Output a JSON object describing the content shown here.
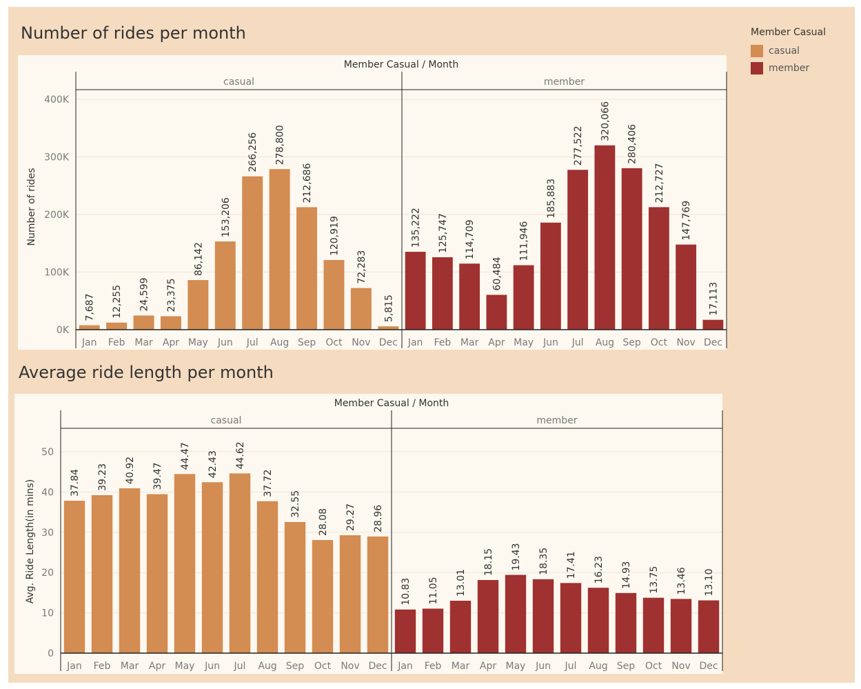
{
  "colors": {
    "casual": "#d38c52",
    "member": "#9f3131",
    "dashboard_bg": "#f5dcc0",
    "panel_bg": "#fdf8f0"
  },
  "legend": {
    "title": "Member Casual",
    "items": [
      {
        "label": "casual",
        "color": "#d38c52"
      },
      {
        "label": "member",
        "color": "#9f3131"
      }
    ]
  },
  "chart_data": [
    {
      "type": "bar",
      "title": "Number of rides per month",
      "header": "Member Casual  /  Month",
      "panels": [
        "casual",
        "member"
      ],
      "categories": [
        "Jan",
        "Feb",
        "Mar",
        "Apr",
        "May",
        "Jun",
        "Jul",
        "Aug",
        "Sep",
        "Oct",
        "Nov",
        "Dec"
      ],
      "series": [
        {
          "name": "casual",
          "values": [
            7687,
            12255,
            24599,
            23375,
            86142,
            153206,
            266256,
            278800,
            212686,
            120919,
            72283,
            5815
          ],
          "labels": [
            "7,687",
            "12,255",
            "24,599",
            "23,375",
            "86,142",
            "153,206",
            "266,256",
            "278,800",
            "212,686",
            "120,919",
            "72,283",
            "5,815"
          ]
        },
        {
          "name": "member",
          "values": [
            135222,
            125747,
            114709,
            60484,
            111946,
            185883,
            277522,
            320066,
            280406,
            212727,
            147769,
            17113
          ],
          "labels": [
            "135,222",
            "125,747",
            "114,709",
            "60,484",
            "111,946",
            "185,883",
            "277,522",
            "320,066",
            "280,406",
            "212,727",
            "147,769",
            "17,113"
          ]
        }
      ],
      "ylabel": "Number of rides",
      "yticks": [
        0,
        100000,
        200000,
        300000,
        400000
      ],
      "ytick_labels": [
        "0K",
        "100K",
        "200K",
        "300K",
        "400K"
      ],
      "ylim": [
        0,
        400000
      ]
    },
    {
      "type": "bar",
      "title": "Average ride length per month",
      "header": "Member Casual  /  Month",
      "panels": [
        "casual",
        "member"
      ],
      "categories": [
        "Jan",
        "Feb",
        "Mar",
        "Apr",
        "May",
        "Jun",
        "Jul",
        "Aug",
        "Sep",
        "Oct",
        "Nov",
        "Dec"
      ],
      "series": [
        {
          "name": "casual",
          "values": [
            37.84,
            39.23,
            40.92,
            39.47,
            44.47,
            42.43,
            44.62,
            37.72,
            32.55,
            28.08,
            29.27,
            28.96
          ],
          "labels": [
            "37.84",
            "39.23",
            "40.92",
            "39.47",
            "44.47",
            "42.43",
            "44.62",
            "37.72",
            "32.55",
            "28.08",
            "29.27",
            "28.96"
          ]
        },
        {
          "name": "member",
          "values": [
            10.83,
            11.05,
            13.01,
            18.15,
            19.43,
            18.35,
            17.41,
            16.23,
            14.93,
            13.75,
            13.46,
            13.1
          ],
          "labels": [
            "10.83",
            "11.05",
            "13.01",
            "18.15",
            "19.43",
            "18.35",
            "17.41",
            "16.23",
            "14.93",
            "13.75",
            "13.46",
            "13.10"
          ]
        }
      ],
      "ylabel": "Avg. Ride Length(in mins)",
      "yticks": [
        0,
        10,
        20,
        30,
        40,
        50
      ],
      "ytick_labels": [
        "0",
        "10",
        "20",
        "30",
        "40",
        "50"
      ],
      "ylim": [
        0,
        55
      ]
    }
  ]
}
